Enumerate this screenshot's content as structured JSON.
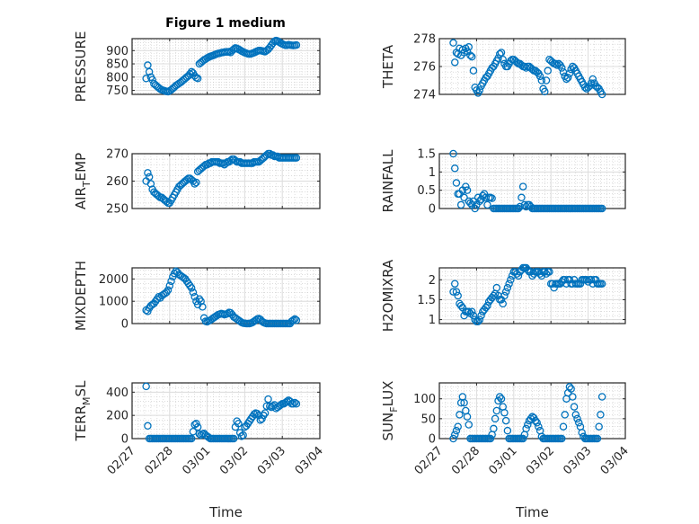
{
  "figure": {
    "title": "Figure 1 medium",
    "xlabel": "Time",
    "marker_color": "#0072BD"
  },
  "chart_data": [
    {
      "type": "scatter",
      "ylabel": "PRESSURE",
      "xlabel": "",
      "ylim": [
        735,
        945
      ],
      "yticks": [
        750,
        800,
        850,
        900
      ],
      "x_start_day": 0.375,
      "step_hours": 1,
      "values": [
        795,
        845,
        820,
        800,
        790,
        775,
        770,
        765,
        760,
        755,
        752,
        750,
        748,
        746,
        745,
        748,
        752,
        757,
        762,
        768,
        772,
        776,
        780,
        785,
        790,
        795,
        800,
        805,
        812,
        820,
        815,
        805,
        798,
        795,
        850,
        855,
        860,
        865,
        868,
        872,
        875,
        878,
        880,
        882,
        885,
        887,
        889,
        890,
        892,
        893,
        894,
        895,
        895,
        896,
        893,
        900,
        905,
        910,
        908,
        905,
        902,
        898,
        895,
        892,
        890,
        888,
        887,
        888,
        890,
        892,
        895,
        898,
        900,
        900,
        899,
        897,
        896,
        900,
        905,
        912,
        920,
        928,
        935,
        938,
        936,
        932,
        928,
        925,
        922,
        920,
        920,
        922,
        921,
        920,
        919,
        920,
        921
      ]
    },
    {
      "type": "scatter",
      "ylabel": "THETA",
      "xlabel": "",
      "ylim": [
        274,
        278
      ],
      "yticks": [
        274,
        276,
        278
      ],
      "x_start_day": 0.375,
      "step_hours": 1,
      "values": [
        277.7,
        276.3,
        277.0,
        276.9,
        277.3,
        276.8,
        277.2,
        277.0,
        277.3,
        277.1,
        277.4,
        276.8,
        276.7,
        275.7,
        274.5,
        274.3,
        274.1,
        274.3,
        274.6,
        274.8,
        275.0,
        275.2,
        275.3,
        275.5,
        275.7,
        275.9,
        276.0,
        276.2,
        276.4,
        276.6,
        276.9,
        277.0,
        276.5,
        276.2,
        276.0,
        276.0,
        276.2,
        276.4,
        276.5,
        276.5,
        276.4,
        276.3,
        276.2,
        276.2,
        276.1,
        276.0,
        276.0,
        275.9,
        276.0,
        276.0,
        275.9,
        275.8,
        275.7,
        275.7,
        275.6,
        275.5,
        275.3,
        275.0,
        274.4,
        274.2,
        275.0,
        275.7,
        276.5,
        276.4,
        276.3,
        276.2,
        276.2,
        276.1,
        276.2,
        276.1,
        275.9,
        275.6,
        275.3,
        275.1,
        275.2,
        275.5,
        275.8,
        276.0,
        275.9,
        275.7,
        275.5,
        275.3,
        275.1,
        274.9,
        274.7,
        274.5,
        274.4,
        274.5,
        274.6,
        274.8,
        275.1,
        274.8,
        274.6,
        274.5,
        274.4,
        274.2,
        274.0
      ]
    },
    {
      "type": "scatter",
      "ylabel": "AIR_TEMP",
      "xlabel": "",
      "ylim": [
        250,
        270
      ],
      "yticks": [
        250,
        260,
        270
      ],
      "x_start_day": 0.375,
      "step_hours": 1,
      "values": [
        260,
        263,
        261.5,
        259,
        257,
        256,
        255.5,
        255,
        254.5,
        254,
        254,
        253.5,
        253,
        252.5,
        252,
        252,
        253,
        254,
        255,
        256,
        257,
        258,
        258.5,
        259,
        259.5,
        260,
        260.5,
        261,
        261,
        260.5,
        260,
        259,
        259.5,
        263.5,
        264,
        264.5,
        265,
        265.5,
        266,
        266,
        266.5,
        266.5,
        267,
        267,
        267,
        267,
        267,
        266.5,
        266.5,
        266.5,
        266,
        266.5,
        267,
        267,
        267.5,
        268,
        268,
        267.5,
        267,
        267,
        267,
        266.5,
        266.5,
        266.5,
        266.5,
        266.5,
        266.5,
        266.5,
        266.5,
        267,
        267,
        267,
        267,
        267.5,
        268,
        268.5,
        269,
        269.5,
        270,
        270,
        269.5,
        269.5,
        269,
        269,
        269,
        268.5,
        268.5,
        268.5,
        268.5,
        268.5,
        268.5,
        268.5,
        268.5,
        268.5,
        268.5,
        268.5,
        268.5
      ]
    },
    {
      "type": "scatter",
      "ylabel": "RAINFALL",
      "xlabel": "",
      "ylim": [
        0,
        1.5
      ],
      "yticks": [
        0,
        0.5,
        1,
        1.5
      ],
      "x_start_day": 0.375,
      "step_hours": 1,
      "values": [
        1.5,
        1.1,
        0.7,
        0.4,
        0.4,
        0.1,
        0.5,
        0.3,
        0.6,
        0.5,
        0.2,
        0.15,
        0.1,
        0.2,
        0.0,
        0.1,
        0.3,
        0.2,
        0.25,
        0.35,
        0.4,
        0.3,
        0.1,
        0.3,
        0.3,
        0.28,
        0,
        0,
        0,
        0,
        0,
        0,
        0,
        0,
        0,
        0,
        0,
        0,
        0,
        0,
        0,
        0,
        0,
        0.05,
        0.3,
        0.6,
        0.1,
        0.05,
        0.1,
        0.1,
        0.05,
        0,
        0,
        0,
        0,
        0,
        0,
        0,
        0,
        0,
        0,
        0,
        0,
        0,
        0,
        0,
        0,
        0,
        0,
        0,
        0,
        0,
        0,
        0,
        0,
        0,
        0,
        0,
        0,
        0,
        0,
        0,
        0,
        0,
        0,
        0,
        0,
        0,
        0,
        0,
        0,
        0,
        0,
        0,
        0,
        0,
        0
      ]
    },
    {
      "type": "scatter",
      "ylabel": "MIXDEPTH",
      "xlabel": "",
      "ylim": [
        0,
        2500
      ],
      "yticks": [
        0,
        1000,
        2000
      ],
      "x_start_day": 0.375,
      "step_hours": 1,
      "values": [
        600,
        550,
        700,
        800,
        850,
        900,
        1000,
        1100,
        1200,
        1150,
        1250,
        1300,
        1350,
        1400,
        1500,
        1700,
        1900,
        2100,
        2250,
        2350,
        2300,
        2200,
        2150,
        2100,
        2050,
        2000,
        1900,
        1800,
        1700,
        1600,
        1400,
        1200,
        1000,
        850,
        1100,
        1000,
        750,
        250,
        100,
        80,
        120,
        150,
        200,
        250,
        300,
        350,
        400,
        420,
        450,
        430,
        400,
        420,
        450,
        500,
        480,
        400,
        300,
        250,
        200,
        150,
        100,
        50,
        20,
        10,
        0,
        0,
        0,
        20,
        50,
        100,
        150,
        200,
        220,
        180,
        100,
        50,
        20,
        0,
        0,
        0,
        0,
        0,
        0,
        0,
        0,
        0,
        0,
        0,
        0,
        0,
        0,
        0,
        0,
        100,
        150,
        200,
        150
      ]
    },
    {
      "type": "scatter",
      "ylabel": "H2OMIXRA",
      "xlabel": "",
      "ylim": [
        0.9,
        2.3
      ],
      "yticks": [
        1,
        1.5,
        2
      ],
      "x_start_day": 0.375,
      "step_hours": 1,
      "values": [
        1.7,
        1.9,
        1.7,
        1.6,
        1.4,
        1.35,
        1.3,
        1.1,
        1.2,
        1.2,
        1.2,
        1.15,
        1.2,
        1.1,
        1.0,
        0.95,
        0.95,
        1.0,
        1.1,
        1.2,
        1.25,
        1.3,
        1.35,
        1.45,
        1.5,
        1.55,
        1.6,
        1.65,
        1.8,
        1.6,
        1.5,
        1.5,
        1.4,
        1.6,
        1.7,
        1.8,
        1.9,
        2.0,
        2.1,
        2.2,
        2.2,
        2.15,
        2.1,
        2.2,
        2.25,
        2.3,
        2.3,
        2.3,
        2.25,
        2.2,
        2.2,
        2.1,
        2.15,
        2.2,
        2.2,
        2.2,
        2.15,
        2.1,
        2.2,
        2.2,
        2.15,
        2.2,
        2.2,
        1.9,
        1.9,
        1.8,
        1.9,
        1.9,
        1.9,
        1.9,
        1.95,
        2.0,
        2.0,
        1.9,
        2.0,
        2.0,
        1.9,
        1.9,
        2.0,
        1.9,
        1.9,
        1.9,
        1.9,
        2.0,
        2.0,
        2.0,
        2.0,
        1.95,
        2.0,
        2.0,
        1.9,
        2.0,
        2.0,
        1.9,
        1.9,
        1.9,
        1.9
      ]
    },
    {
      "type": "scatter",
      "ylabel": "TERR_MSL",
      "xlabel": "Time",
      "ylim": [
        0,
        480
      ],
      "yticks": [
        0,
        200,
        400
      ],
      "x_start_day": 0.375,
      "step_hours": 1,
      "values": [
        450,
        110,
        0,
        0,
        0,
        0,
        0,
        0,
        0,
        0,
        0,
        0,
        0,
        0,
        0,
        0,
        0,
        0,
        0,
        0,
        0,
        0,
        0,
        0,
        0,
        0,
        0,
        0,
        0,
        0,
        60,
        120,
        130,
        100,
        40,
        30,
        40,
        45,
        30,
        20,
        10,
        0,
        0,
        0,
        0,
        0,
        0,
        0,
        0,
        0,
        0,
        0,
        0,
        0,
        0,
        0,
        0,
        100,
        150,
        130,
        50,
        20,
        30,
        100,
        110,
        130,
        150,
        170,
        190,
        210,
        220,
        215,
        200,
        160,
        170,
        200,
        220,
        280,
        340,
        280,
        270,
        280,
        290,
        260,
        270,
        280,
        290,
        300,
        300,
        310,
        320,
        330,
        320,
        300,
        300,
        310,
        300
      ]
    },
    {
      "type": "scatter",
      "ylabel": "SUN_FLUX",
      "xlabel": "Time",
      "ylim": [
        0,
        140
      ],
      "yticks": [
        0,
        50,
        100
      ],
      "x_start_day": 0.375,
      "step_hours": 1,
      "values": [
        0,
        10,
        20,
        30,
        60,
        90,
        105,
        90,
        70,
        55,
        35,
        0,
        0,
        0,
        0,
        0,
        0,
        0,
        0,
        0,
        0,
        0,
        0,
        0,
        0,
        10,
        25,
        50,
        70,
        95,
        105,
        100,
        80,
        65,
        45,
        20,
        0,
        0,
        0,
        0,
        0,
        0,
        0,
        0,
        0,
        0,
        10,
        25,
        35,
        45,
        50,
        55,
        52,
        45,
        40,
        30,
        20,
        5,
        0,
        0,
        0,
        0,
        0,
        0,
        0,
        0,
        0,
        0,
        0,
        0,
        0,
        30,
        60,
        100,
        115,
        130,
        125,
        105,
        80,
        60,
        50,
        40,
        30,
        15,
        5,
        0,
        0,
        0,
        0,
        0,
        0,
        0,
        0,
        0,
        30,
        60,
        105
      ]
    }
  ],
  "xaxis": {
    "xlim_days": [
      0,
      5
    ],
    "ticks": [
      "02/27",
      "02/28",
      "03/01",
      "03/02",
      "03/03",
      "03/04"
    ]
  }
}
